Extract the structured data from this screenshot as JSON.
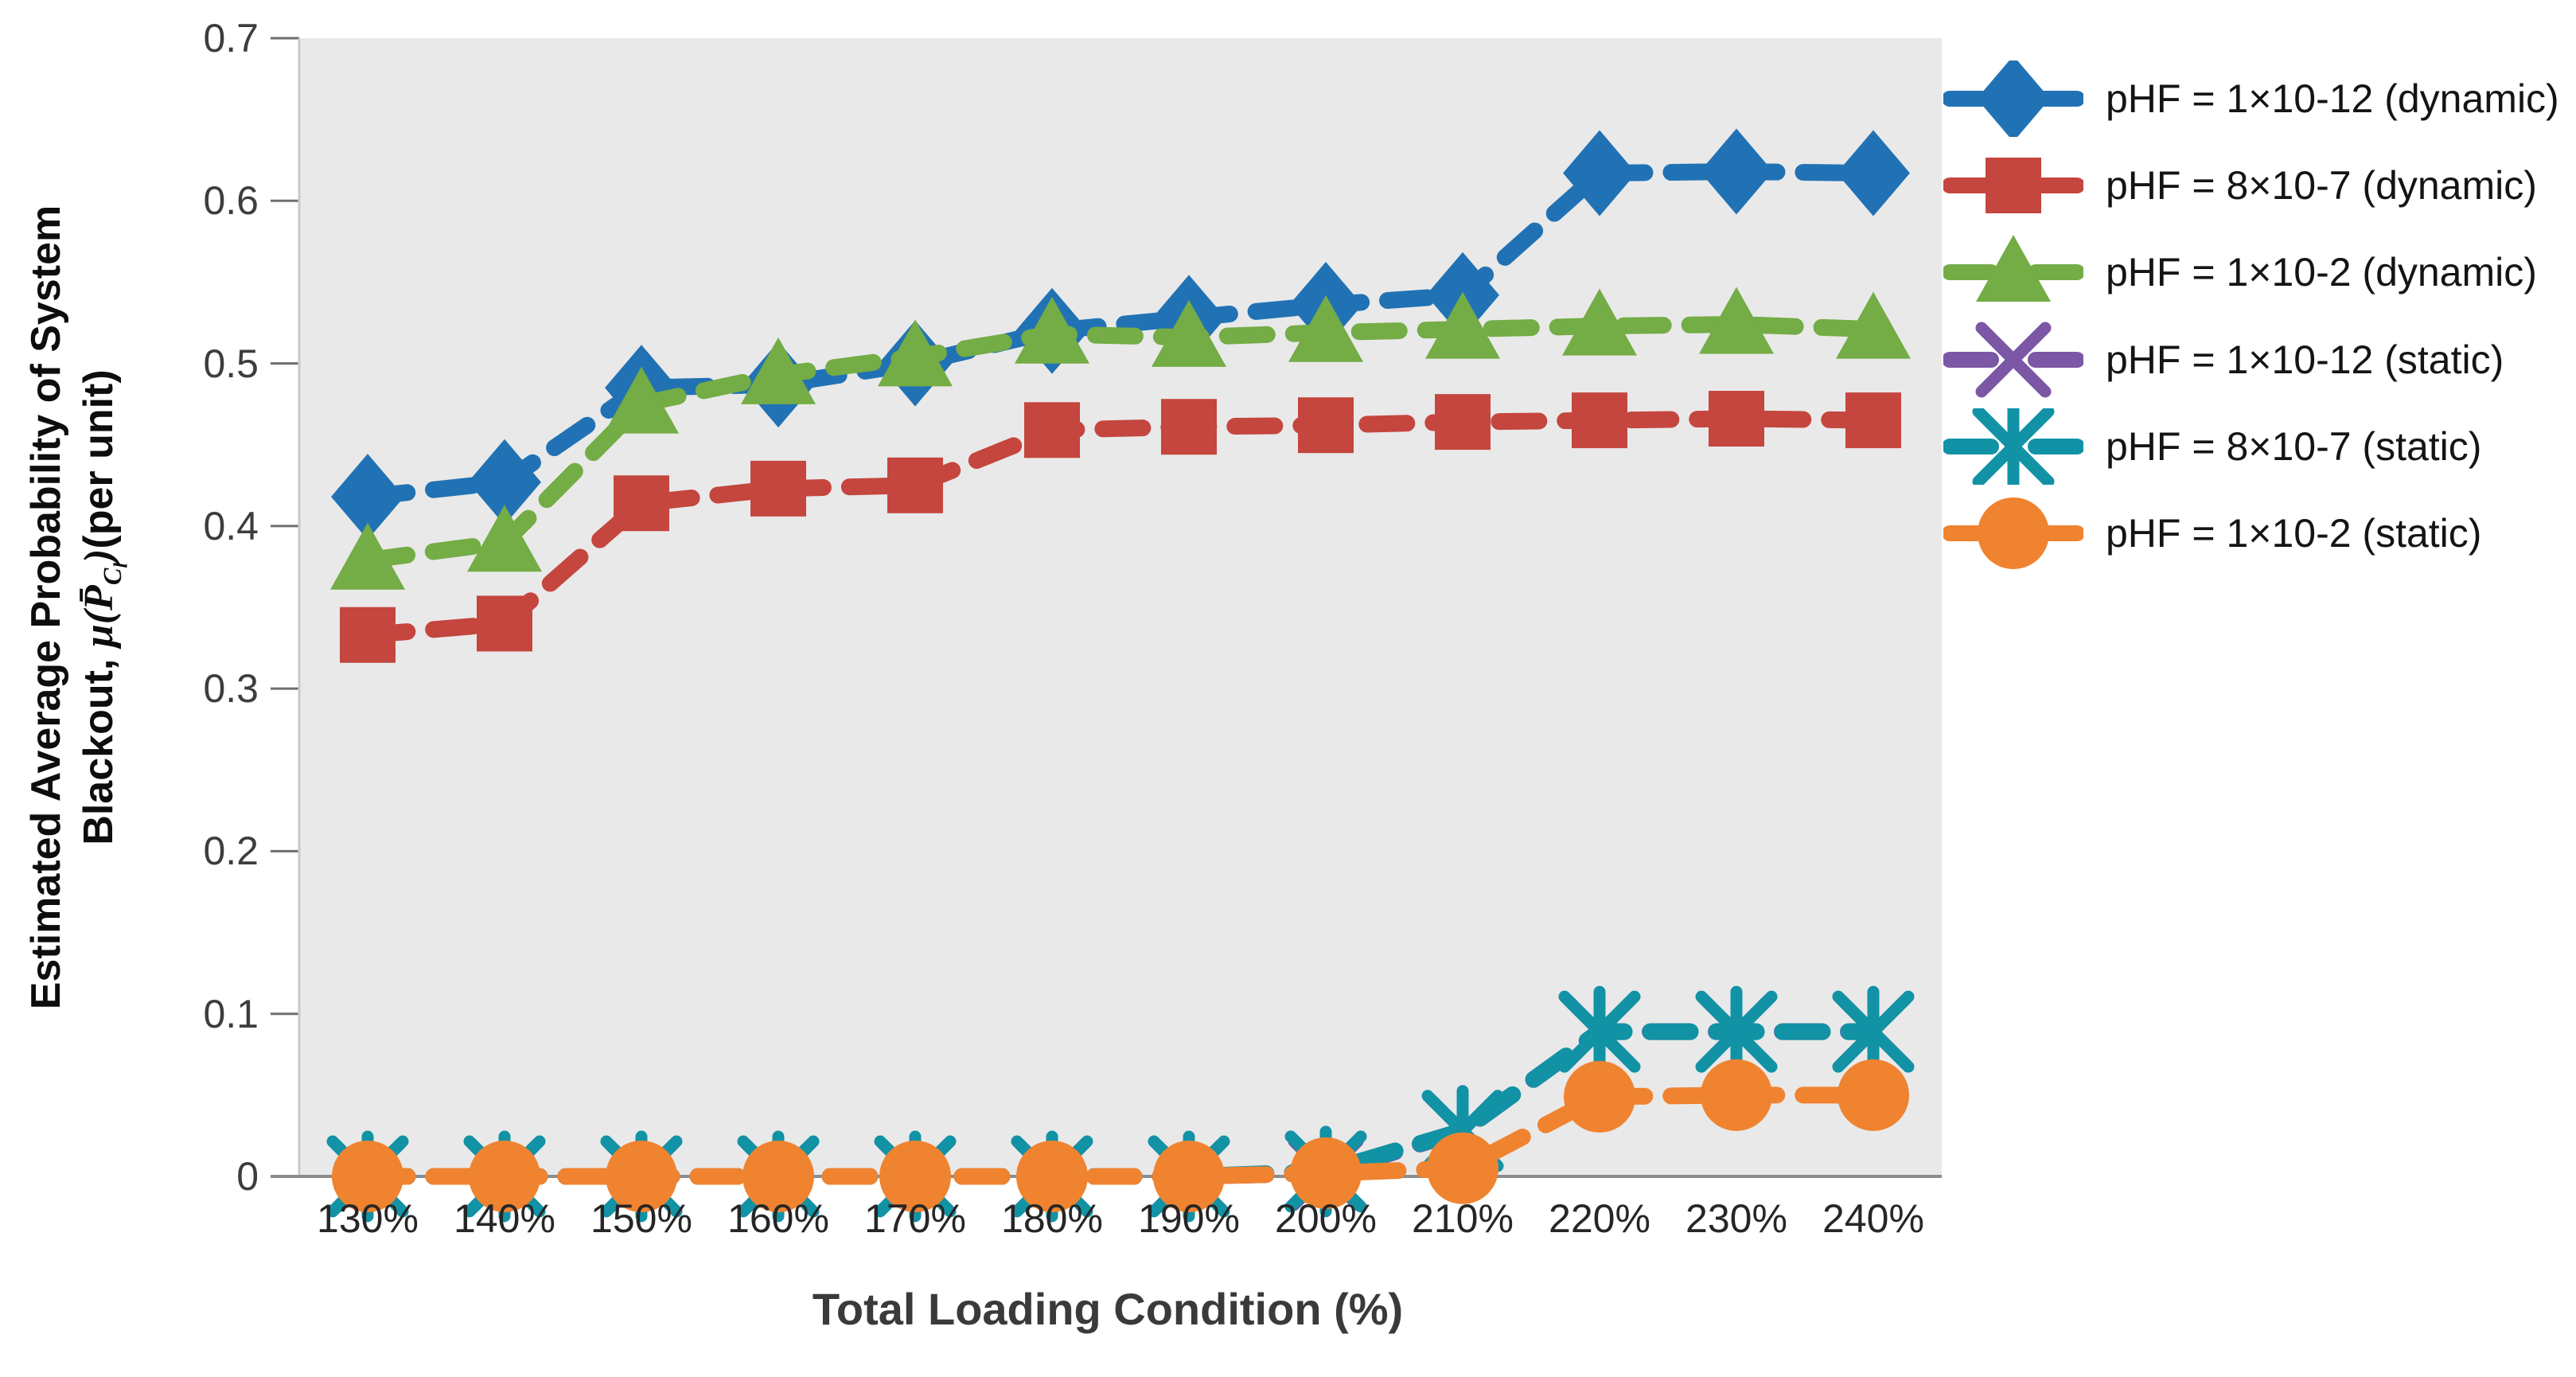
{
  "figure_text": {
    "ylabel_line1": "Estimated Average Probability of System",
    "ylabel_line2_prefix": "Blackout, ",
    "ylabel_mu": "μ",
    "ylabel_open": "(",
    "ylabel_pbar": "P̄",
    "ylabel_sub_c": "C",
    "ylabel_sub_l": "l",
    "ylabel_close": ")",
    "ylabel_suffix": "(per unit)",
    "xlabel": "Total Loading Condition (%)"
  },
  "chart_data": {
    "type": "line",
    "title": "",
    "xlabel": "Total Loading Condition (%)",
    "ylabel": "Estimated Average Probability of System Blackout, μ(P̄_Cl) (per unit)",
    "categories": [
      "130%",
      "140%",
      "150%",
      "160%",
      "170%",
      "180%",
      "190%",
      "200%",
      "210%",
      "220%",
      "230%",
      "240%"
    ],
    "ylim": [
      0,
      0.7
    ],
    "y_ticks": [
      0,
      0.1,
      0.2,
      0.3,
      0.4,
      0.5,
      0.6,
      0.7
    ],
    "y_tick_labels": [
      "0",
      "0.1",
      "0.2",
      "0.3",
      "0.4",
      "0.5",
      "0.6",
      "0.7"
    ],
    "grid": false,
    "legend_position": "right",
    "plot_bg": "#E9E9E9",
    "line_style": "dashed",
    "series": [
      {
        "name": "pHF = 1×10-12 (dynamic)",
        "color": "#2172B4",
        "marker": "diamond",
        "values": [
          0.418,
          0.427,
          0.485,
          0.487,
          0.5,
          0.52,
          0.528,
          0.536,
          0.542,
          0.617,
          0.618,
          0.617
        ]
      },
      {
        "name": "pHF = 8×10-7 (dynamic)",
        "color": "#C4463E",
        "marker": "square",
        "values": [
          0.333,
          0.34,
          0.414,
          0.423,
          0.425,
          0.459,
          0.461,
          0.462,
          0.464,
          0.465,
          0.466,
          0.465
        ]
      },
      {
        "name": "pHF = 1×10-2 (dynamic)",
        "color": "#74AC45",
        "marker": "triangle",
        "values": [
          0.379,
          0.39,
          0.475,
          0.493,
          0.504,
          0.518,
          0.516,
          0.519,
          0.521,
          0.523,
          0.524,
          0.521
        ]
      },
      {
        "name": "pHF = 1×10-12 (static)",
        "color": "#7B57A6",
        "marker": "x",
        "values": [
          0,
          0,
          0,
          0,
          0,
          0,
          0,
          0.002,
          0.028,
          0.089,
          0.089,
          0.089
        ]
      },
      {
        "name": "pHF = 8×10-7 (static)",
        "color": "#1292A5",
        "marker": "asterisk",
        "values": [
          0,
          0,
          0,
          0,
          0,
          0,
          0,
          0.003,
          0.028,
          0.089,
          0.089,
          0.089
        ]
      },
      {
        "name": "pHF = 1×10-2 (static)",
        "color": "#F08330",
        "marker": "circle",
        "values": [
          0,
          0,
          0,
          0,
          0,
          0,
          0,
          0.002,
          0.005,
          0.049,
          0.05,
          0.05
        ]
      }
    ]
  }
}
